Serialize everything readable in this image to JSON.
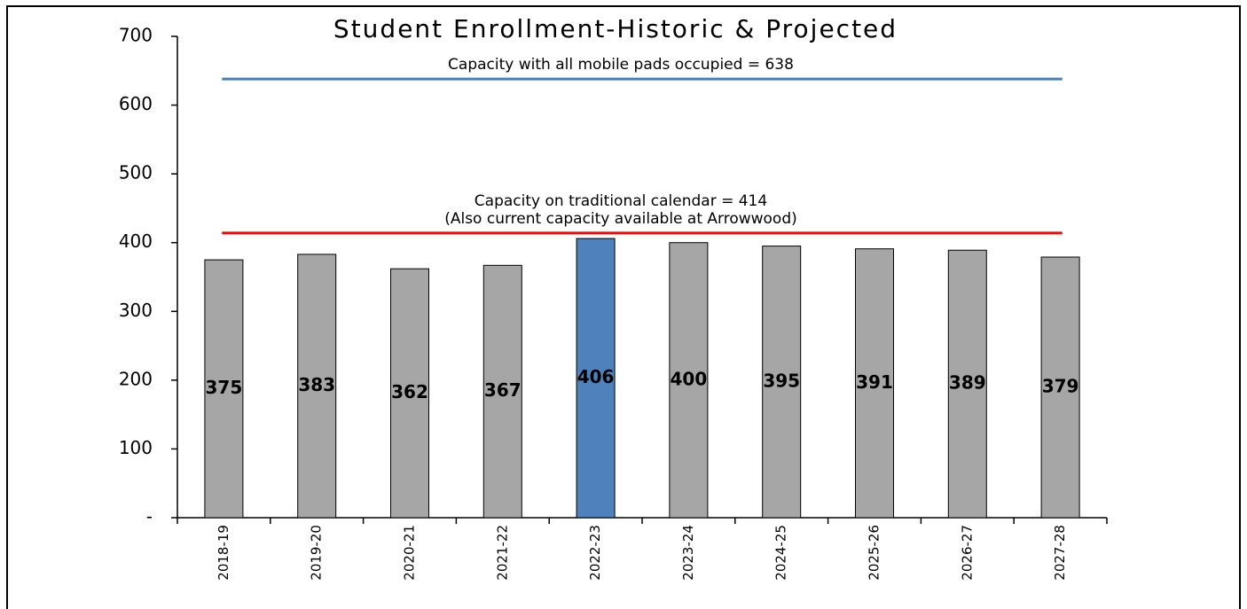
{
  "chart_data": {
    "type": "bar",
    "title": "Student Enrollment-Historic & Projected",
    "categories": [
      "2018-19",
      "2019-20",
      "2020-21",
      "2021-22",
      "2022-23",
      "2023-24",
      "2024-25",
      "2025-26",
      "2026-27",
      "2027-28"
    ],
    "values": [
      375,
      383,
      362,
      367,
      406,
      400,
      395,
      391,
      389,
      379
    ],
    "colors": [
      "#a6a6a6",
      "#a6a6a6",
      "#a6a6a6",
      "#a6a6a6",
      "#4f81bd",
      "#a6a6a6",
      "#a6a6a6",
      "#a6a6a6",
      "#a6a6a6",
      "#a6a6a6"
    ],
    "ylim": [
      0,
      700
    ],
    "yticks": [
      {
        "value": 0,
        "label": "-"
      },
      100,
      200,
      300,
      400,
      500,
      600,
      700
    ],
    "reference_lines": [
      {
        "value": 638,
        "color": "#4a7ebb",
        "label": [
          "Capacity with all mobile pads occupied = 638"
        ]
      },
      {
        "value": 414,
        "color": "#ff0000",
        "label": [
          "Capacity on traditional calendar = 414",
          "(Also current capacity available at Arrowwood)"
        ]
      }
    ]
  }
}
